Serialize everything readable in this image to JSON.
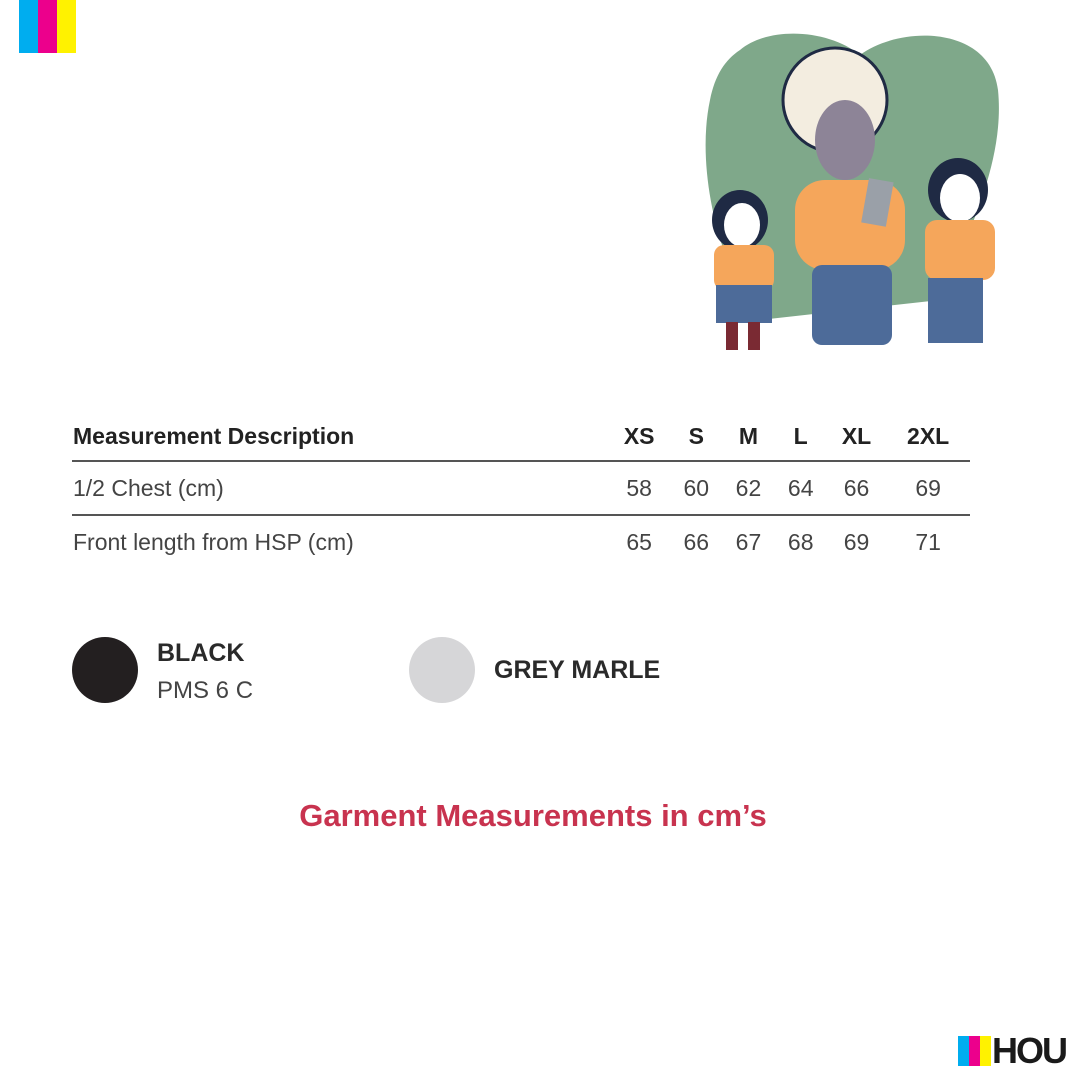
{
  "table": {
    "headers": [
      "Measurement Description",
      "XS",
      "S",
      "M",
      "L",
      "XL",
      "2XL"
    ],
    "rows": [
      {
        "label": "1/2 Chest (cm)",
        "values": [
          "58",
          "60",
          "62",
          "64",
          "66",
          "69"
        ]
      },
      {
        "label": "Front length from HSP (cm)",
        "values": [
          "65",
          "66",
          "67",
          "68",
          "69",
          "71"
        ]
      }
    ]
  },
  "colours": [
    {
      "name": "BLACK",
      "code": "PMS 6 C",
      "hex": "#231f20"
    },
    {
      "name": "GREY MARLE",
      "hex": "#d6d6d8"
    }
  ],
  "caption": "Garment Measurements in cm’s",
  "brand": {
    "text": "HOU",
    "colors": [
      "#00adef",
      "#ec008c",
      "#fff200"
    ]
  }
}
